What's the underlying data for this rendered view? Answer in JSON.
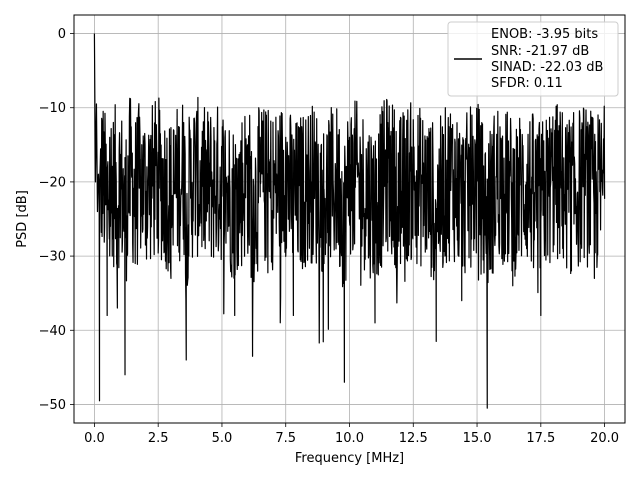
{
  "chart_data": {
    "type": "line",
    "title": "",
    "xlabel": "Frequency [MHz]",
    "ylabel": "PSD [dB]",
    "xlim": [
      -0.8,
      20.8
    ],
    "ylim": [
      -52.5,
      2.5
    ],
    "xticks": [
      0.0,
      2.5,
      5.0,
      7.5,
      10.0,
      12.5,
      15.0,
      17.5,
      20.0
    ],
    "xtick_labels": [
      "0.0",
      "2.5",
      "5.0",
      "7.5",
      "10.0",
      "12.5",
      "15.0",
      "17.5",
      "20.0"
    ],
    "yticks": [
      0,
      -10,
      -20,
      -30,
      -40,
      -50
    ],
    "ytick_labels": [
      "0",
      "−10",
      "−20",
      "−30",
      "−40",
      "−50"
    ],
    "grid": true,
    "legend_position": "top-right",
    "legend_lines": [
      "ENOB: -3.95 bits",
      "SNR: -21.97 dB",
      "SINAD: -22.03 dB",
      "SFDR: 0.11"
    ],
    "series": [
      {
        "color": "#000000",
        "x": [
          0.0,
          0.04,
          0.08,
          0.12,
          0.2,
          0.3,
          0.4,
          0.5,
          0.6,
          0.7,
          0.8,
          0.9,
          1.0,
          1.2,
          1.4,
          1.6,
          1.8,
          2.0,
          2.5,
          3.0,
          3.5,
          3.6,
          3.9,
          4.3,
          5.0,
          5.5,
          6.0,
          6.2,
          6.5,
          7.0,
          7.5,
          7.8,
          8.5,
          9.0,
          9.5,
          9.8,
          10.0,
          10.6,
          11.0,
          11.5,
          12.0,
          12.3,
          13.0,
          13.4,
          14.0,
          14.4,
          15.0,
          15.4,
          15.8,
          16.4,
          16.9,
          17.5,
          18.0,
          18.7,
          19.2,
          19.6,
          20.0
        ],
        "y": [
          0.0,
          -20.0,
          -9.5,
          -24.0,
          -49.5,
          -12.0,
          -26.0,
          -38.0,
          -14.0,
          -30.0,
          -21.0,
          -37.0,
          -16.0,
          -46.0,
          -13.5,
          -31.0,
          -18.0,
          -26.0,
          -16.0,
          -33.0,
          -12.0,
          -44.0,
          -12.0,
          -25.0,
          -20.0,
          -38.0,
          -15.0,
          -43.5,
          -22.0,
          -27.0,
          -14.0,
          -38.0,
          -20.0,
          -31.0,
          -22.0,
          -47.0,
          -14.0,
          -27.0,
          -39.0,
          -12.0,
          -31.0,
          -19.0,
          -27.0,
          -41.5,
          -14.0,
          -36.0,
          -18.0,
          -50.5,
          -16.0,
          -34.0,
          -22.0,
          -38.0,
          -18.0,
          -32.0,
          -20.0,
          -33.0,
          -22.0
        ]
      }
    ]
  }
}
